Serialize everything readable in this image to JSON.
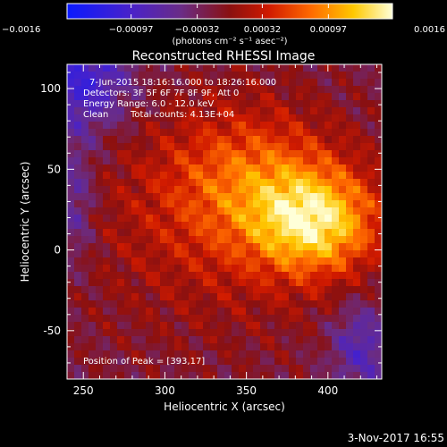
{
  "chart_data": {
    "type": "heatmap",
    "title": "Reconstructed RHESSI Image",
    "xlabel": "Heliocentric X (arcsec)",
    "ylabel": "Heliocentric Y (arcsec)",
    "xlim": [
      240,
      433
    ],
    "ylim": [
      -80,
      115
    ],
    "x_ticks": [
      250,
      300,
      350,
      400
    ],
    "y_ticks": [
      -50,
      0,
      50,
      100
    ],
    "colorbar": {
      "range": [
        -0.0016,
        0.0016
      ],
      "ticks": [
        -0.0016,
        -0.00097,
        -0.00032,
        0.00032,
        0.00097,
        0.0016
      ],
      "tick_labels": [
        "−0.0016",
        "−0.00097",
        "−0.00032",
        "0.00032",
        "0.00097",
        "0.0016"
      ],
      "units": "(photons cm⁻² s⁻¹ asec⁻²)"
    },
    "annotations": {
      "time": "7-Jun-2015 18:16:16.000 to 18:26:16.000",
      "detectors": "Detectors: 3F 5F 6F 7F 8F 9F, Att 0",
      "energy": "Energy Range: 6.0 - 12.0 keV",
      "algorithm": "Clean",
      "counts": "Total counts: 4.13E+04",
      "peak": "Position of Peak = [393,17]"
    },
    "peak": [
      393,
      17
    ],
    "footer_date": "3-Nov-2017 16:55"
  }
}
